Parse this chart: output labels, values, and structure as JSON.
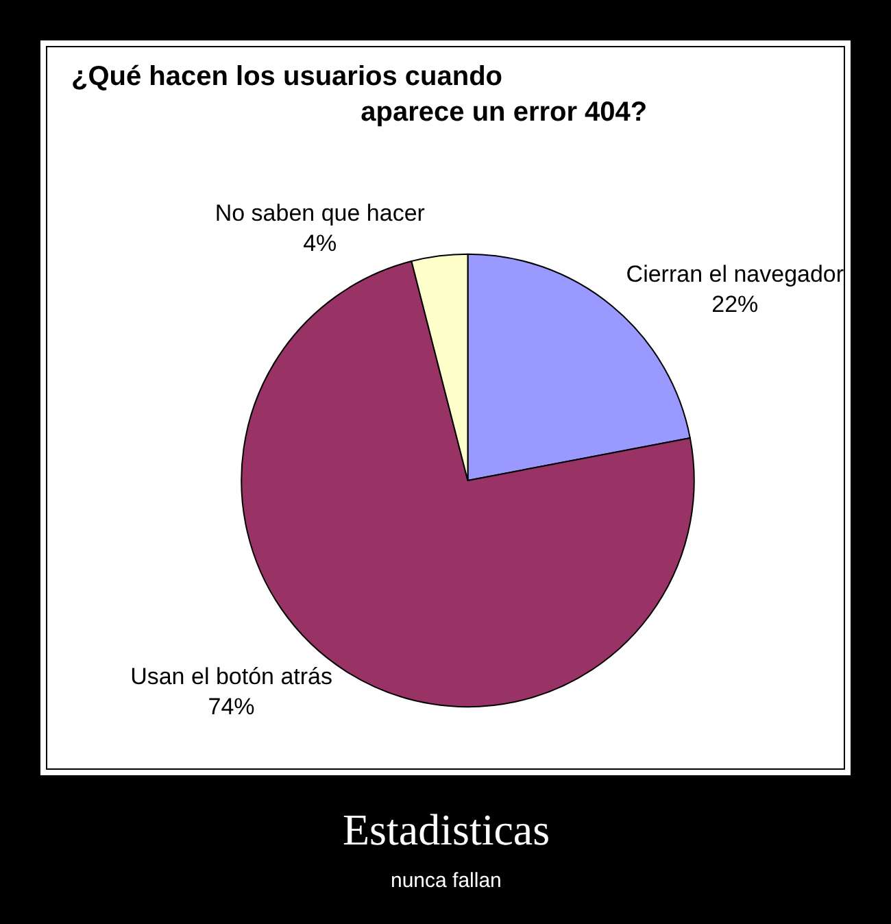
{
  "chart_data": {
    "type": "pie",
    "title": "¿Qué hacen los usuarios cuando\naparece un error 404?",
    "categories": [
      "Cierran el navegador",
      "Usan el botón atrás",
      "No saben que hacer"
    ],
    "values": [
      22,
      74,
      4
    ],
    "value_labels": [
      "22%",
      "74%",
      "4%"
    ],
    "colors": [
      "#9999ff",
      "#993366",
      "#ffffcc"
    ],
    "annotations": [
      "Estadisticas",
      "nunca fallan"
    ]
  }
}
